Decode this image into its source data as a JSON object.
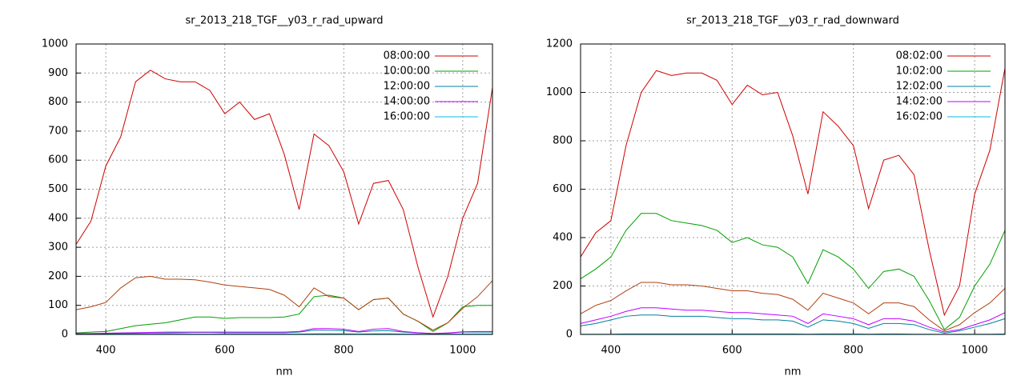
{
  "chart_data": [
    {
      "type": "line",
      "title": "sr_2013_218_TGF__y03_r_rad_upward",
      "xlabel": "nm",
      "x": [
        350,
        375,
        400,
        425,
        450,
        475,
        500,
        525,
        550,
        575,
        600,
        625,
        650,
        675,
        700,
        725,
        750,
        775,
        800,
        825,
        850,
        875,
        900,
        925,
        950,
        975,
        1000,
        1025,
        1050
      ],
      "xlim": [
        350,
        1050
      ],
      "xticks": [
        400,
        600,
        800,
        1000
      ],
      "ylim": [
        0,
        1000
      ],
      "yticks": [
        0,
        100,
        200,
        300,
        400,
        500,
        600,
        700,
        800,
        900,
        1000
      ],
      "grid": true,
      "legend": "upper right",
      "series": [
        {
          "name": "08:00:00",
          "color": "#d00000",
          "values": [
            310,
            390,
            580,
            680,
            870,
            910,
            880,
            870,
            870,
            840,
            760,
            800,
            740,
            760,
            620,
            430,
            690,
            650,
            560,
            380,
            520,
            530,
            430,
            230,
            60,
            200,
            400,
            520,
            850
          ]
        },
        {
          "name": "10:00:00",
          "color": "#00a000",
          "values": [
            5,
            8,
            10,
            20,
            30,
            35,
            40,
            50,
            60,
            60,
            55,
            58,
            58,
            58,
            60,
            70,
            130,
            135,
            125,
            85,
            120,
            125,
            70,
            45,
            10,
            40,
            95,
            100,
            100
          ]
        },
        {
          "name": "12:00:00",
          "color": "#0080a0",
          "values": [
            2,
            2,
            2,
            3,
            4,
            5,
            5,
            6,
            7,
            7,
            6,
            6,
            6,
            6,
            6,
            8,
            15,
            14,
            13,
            8,
            12,
            13,
            8,
            5,
            2,
            4,
            8,
            8,
            8
          ]
        },
        {
          "name": "14:00:00",
          "color": "#c000ff",
          "values": [
            3,
            3,
            4,
            5,
            6,
            7,
            8,
            8,
            8,
            8,
            8,
            8,
            8,
            8,
            8,
            10,
            20,
            20,
            18,
            10,
            18,
            20,
            10,
            6,
            3,
            5,
            9,
            10,
            10
          ]
        },
        {
          "name": "16:00:00",
          "color": "#00c0e0",
          "values": [
            0,
            0,
            0,
            1,
            1,
            1,
            1,
            1,
            1,
            1,
            1,
            1,
            1,
            1,
            1,
            1,
            2,
            2,
            2,
            1,
            2,
            2,
            1,
            1,
            0,
            1,
            1,
            1,
            1
          ]
        },
        {
          "color": "#b04010",
          "values": [
            85,
            95,
            110,
            160,
            195,
            200,
            190,
            190,
            188,
            180,
            170,
            165,
            160,
            155,
            135,
            95,
            160,
            130,
            125,
            85,
            120,
            125,
            70,
            45,
            15,
            40,
            90,
            130,
            185
          ]
        }
      ]
    },
    {
      "type": "line",
      "title": "sr_2013_218_TGF__y03_r_rad_downward",
      "xlabel": "nm",
      "x": [
        350,
        375,
        400,
        425,
        450,
        475,
        500,
        525,
        550,
        575,
        600,
        625,
        650,
        675,
        700,
        725,
        750,
        775,
        800,
        825,
        850,
        875,
        900,
        925,
        950,
        975,
        1000,
        1025,
        1050
      ],
      "xlim": [
        350,
        1050
      ],
      "xticks": [
        400,
        600,
        800,
        1000
      ],
      "ylim": [
        0,
        1200
      ],
      "yticks": [
        0,
        200,
        400,
        600,
        800,
        1000,
        1200
      ],
      "grid": true,
      "legend": "upper right",
      "series": [
        {
          "name": "08:02:00",
          "color": "#d00000",
          "values": [
            320,
            420,
            470,
            780,
            1000,
            1090,
            1070,
            1080,
            1080,
            1050,
            950,
            1030,
            990,
            1000,
            820,
            580,
            920,
            860,
            780,
            520,
            720,
            740,
            660,
            350,
            80,
            200,
            580,
            760,
            1100
          ]
        },
        {
          "name": "10:02:00",
          "color": "#00a000",
          "values": [
            230,
            270,
            320,
            430,
            500,
            500,
            470,
            460,
            450,
            430,
            380,
            400,
            370,
            360,
            320,
            210,
            350,
            320,
            270,
            190,
            260,
            270,
            240,
            140,
            20,
            70,
            200,
            290,
            430
          ]
        },
        {
          "name": "12:02:00",
          "color": "#0080a0",
          "values": [
            35,
            45,
            60,
            75,
            80,
            80,
            75,
            75,
            75,
            70,
            65,
            65,
            60,
            60,
            55,
            30,
            60,
            55,
            45,
            25,
            45,
            45,
            40,
            20,
            5,
            15,
            30,
            45,
            65
          ]
        },
        {
          "name": "14:02:00",
          "color": "#c000ff",
          "values": [
            45,
            60,
            75,
            95,
            110,
            110,
            105,
            100,
            100,
            95,
            90,
            90,
            85,
            80,
            75,
            45,
            85,
            75,
            65,
            40,
            65,
            65,
            55,
            30,
            10,
            20,
            40,
            60,
            90
          ]
        },
        {
          "name": "16:02:00",
          "color": "#00c0e0",
          "values": [
            1,
            1,
            1,
            2,
            2,
            2,
            2,
            2,
            2,
            2,
            2,
            2,
            2,
            2,
            2,
            1,
            2,
            2,
            2,
            1,
            2,
            2,
            1,
            1,
            0,
            1,
            1,
            1,
            2
          ]
        },
        {
          "color": "#b04010",
          "values": [
            85,
            120,
            140,
            180,
            215,
            215,
            205,
            205,
            200,
            190,
            180,
            180,
            170,
            165,
            145,
            100,
            170,
            150,
            130,
            85,
            130,
            130,
            115,
            60,
            15,
            40,
            90,
            130,
            190
          ]
        }
      ]
    }
  ]
}
